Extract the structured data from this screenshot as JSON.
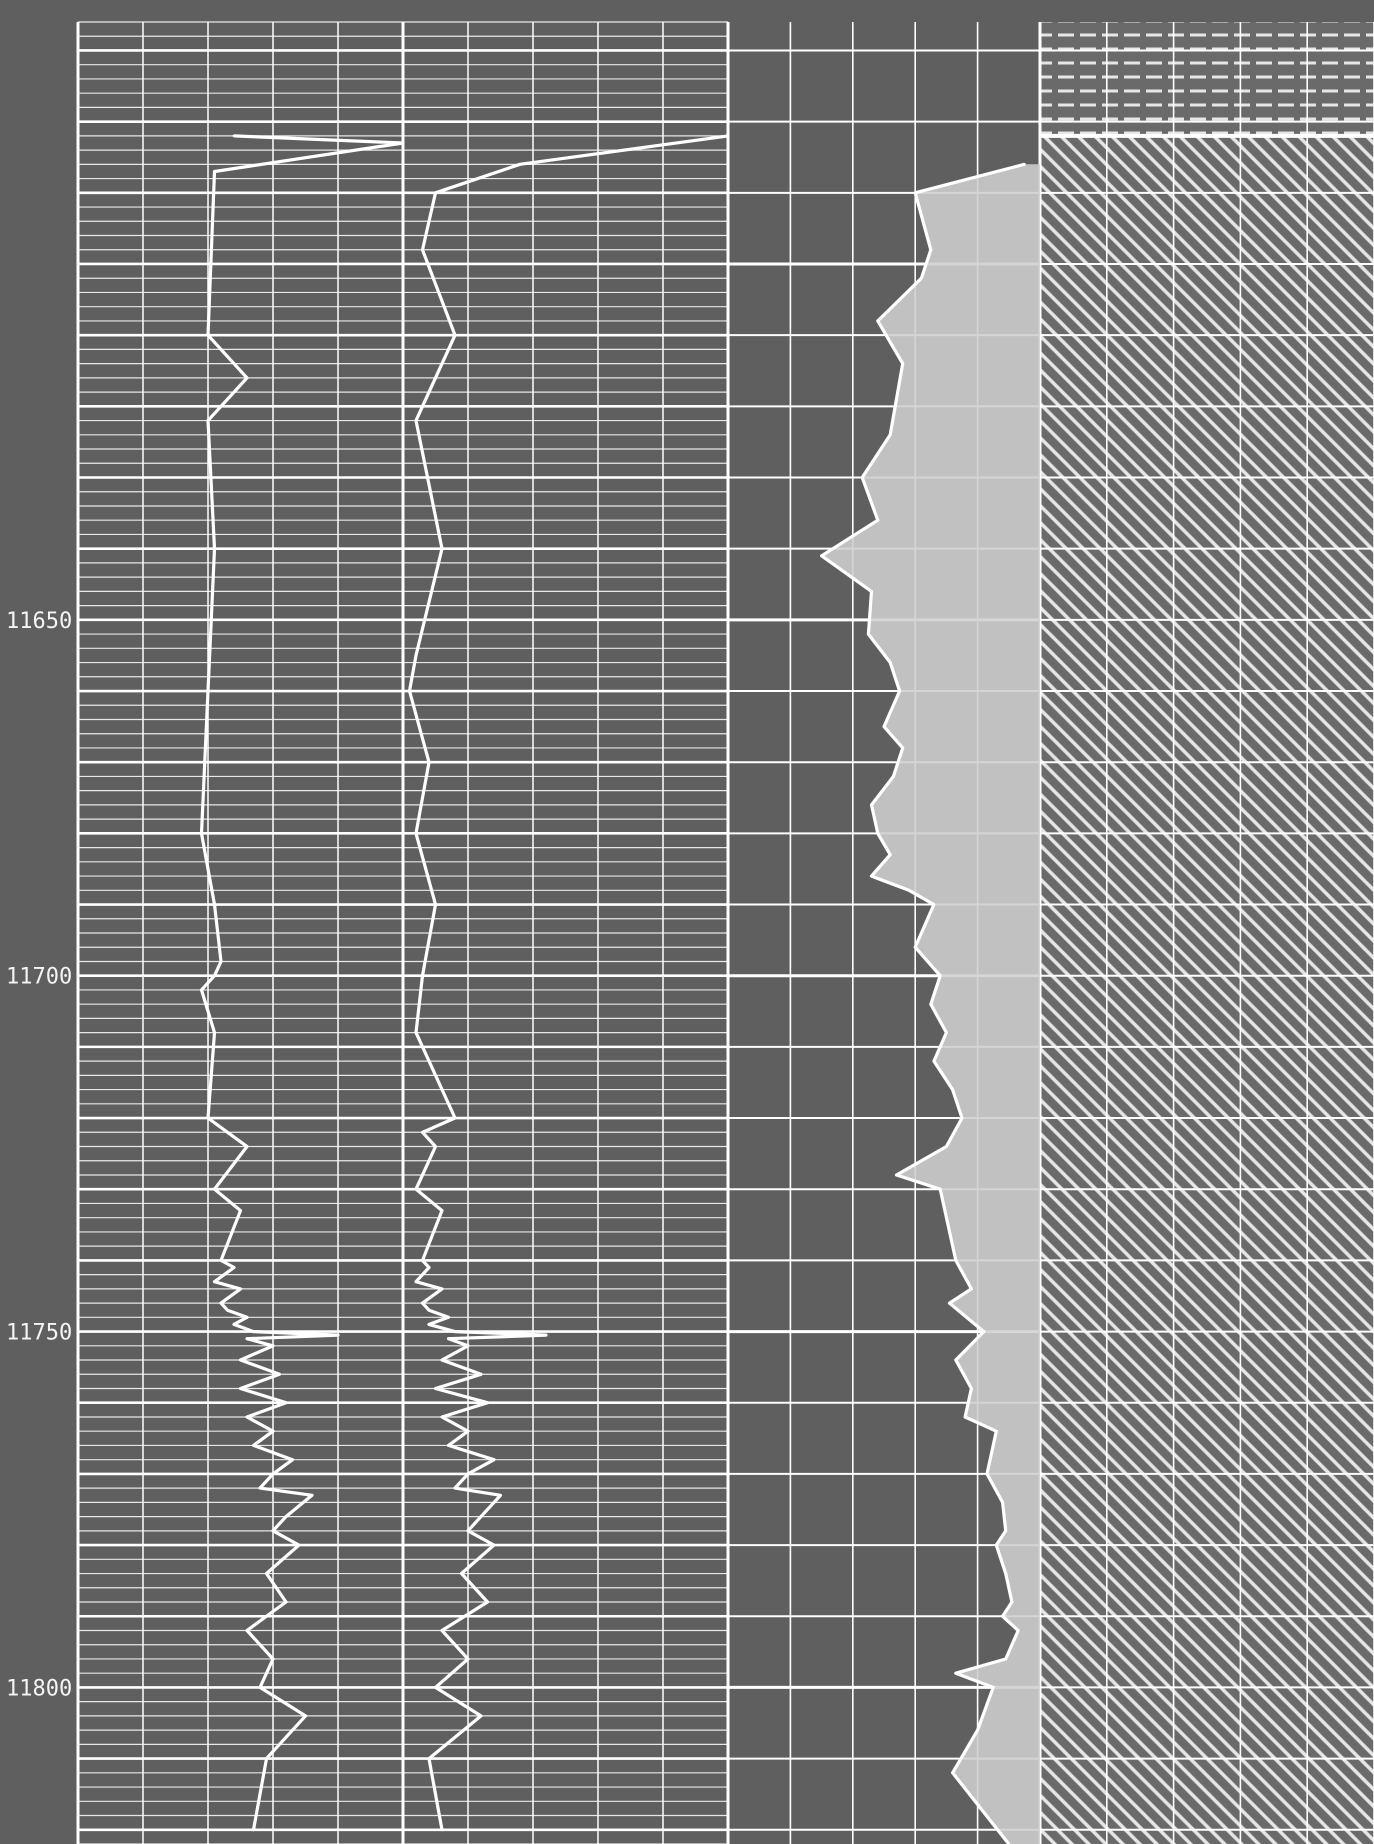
{
  "colors": {
    "background": "#5f5f5f",
    "grid": "#ffffff",
    "curve": "#ffffff",
    "shading": "#cfcfcf",
    "hatch": "#e6e6e6"
  },
  "chart_data": {
    "type": "line",
    "depth_axis": {
      "range": [
        11566,
        11822
      ],
      "tick_labels": [
        "11650",
        "11700",
        "11750",
        "11800"
      ],
      "tick_values": [
        11650,
        11700,
        11750,
        11800
      ]
    },
    "tracks": [
      {
        "name": "track-1",
        "scale": "linear",
        "grid": true,
        "fine_depth_grid": true
      },
      {
        "name": "track-2",
        "scale": "linear",
        "grid": true,
        "fine_depth_grid": false
      },
      {
        "name": "track-3",
        "scale": "linear",
        "grid": true,
        "fill": "hatched"
      }
    ],
    "series": [
      {
        "track": 1,
        "x": [
          2.4,
          5.0,
          2.1,
          2.0,
          2.6,
          2.0,
          2.1,
          2.0,
          1.9,
          2.1,
          2.2,
          2.1,
          1.9,
          2.1,
          2.0,
          2.3,
          2.6,
          2.1,
          2.5,
          2.2,
          2.4,
          2.1,
          2.5,
          2.2,
          2.3,
          2.6,
          2.4,
          2.7,
          4.0,
          2.6,
          3.0,
          2.5,
          3.1,
          2.5,
          3.2,
          2.6,
          3.0,
          2.7,
          3.3,
          3.0,
          2.8,
          3.6,
          3.2,
          3.0,
          3.4,
          2.9,
          3.2,
          2.6,
          3.0,
          2.8,
          3.5,
          2.9,
          2.7
        ],
        "y": [
          11582,
          11583,
          11587,
          11610,
          11616,
          11622,
          11640,
          11660,
          11680,
          11690,
          11698,
          11700,
          11702,
          11708,
          11720,
          11722,
          11724,
          11730,
          11733,
          11740,
          11741,
          11743,
          11744,
          11746,
          11747,
          11748,
          11749,
          11750,
          11750.5,
          11751,
          11752,
          11754,
          11756,
          11758,
          11760,
          11762,
          11764,
          11766,
          11768,
          11770,
          11772,
          11773,
          11776,
          11778,
          11780,
          11784,
          11788,
          11792,
          11796,
          11800,
          11804,
          11810,
          11820
        ]
      },
      {
        "track": 1,
        "x": [
          10.0,
          6.8,
          5.5,
          5.3,
          5.8,
          5.2,
          5.6,
          5.2,
          5.1,
          5.4,
          5.2,
          5.5,
          5.3,
          5.2,
          5.8,
          5.3,
          5.5,
          5.2,
          5.6,
          5.3,
          5.4,
          5.2,
          5.6,
          5.3,
          5.4,
          5.7,
          5.4,
          5.8,
          7.2,
          5.7,
          6.0,
          5.6,
          6.2,
          5.5,
          6.3,
          5.6,
          6.0,
          5.7,
          6.4,
          6.0,
          5.8,
          6.5,
          6.2,
          6.0,
          6.4,
          5.9,
          6.3,
          5.6,
          6.0,
          5.5,
          6.2,
          5.4,
          5.6
        ],
        "y": [
          11582,
          11586,
          11590,
          11598,
          11610,
          11622,
          11640,
          11655,
          11660,
          11670,
          11680,
          11690,
          11700,
          11708,
          11720,
          11722,
          11724,
          11730,
          11733,
          11740,
          11741,
          11743,
          11744,
          11746,
          11747,
          11748,
          11749,
          11750,
          11750.5,
          11751,
          11752,
          11754,
          11756,
          11758,
          11760,
          11762,
          11764,
          11766,
          11768,
          11770,
          11772,
          11773,
          11776,
          11778,
          11780,
          11784,
          11788,
          11792,
          11796,
          11800,
          11804,
          11810,
          11820
        ]
      },
      {
        "track": 2,
        "x": [
          9.5,
          6.0,
          6.5,
          6.2,
          4.8,
          5.6,
          5.2,
          4.3,
          4.8,
          3.0,
          4.6,
          4.5,
          5.2,
          5.5,
          5.0,
          5.6,
          5.3,
          4.6,
          4.8,
          5.2,
          4.6,
          5.8,
          6.6,
          6.0,
          6.8,
          6.5,
          7.0,
          6.6,
          7.2,
          7.5,
          7.0,
          5.4,
          6.8,
          7.3,
          7.8,
          7.1,
          8.2,
          7.3,
          7.8,
          7.6,
          8.6,
          8.3,
          8.8,
          8.9,
          8.6,
          8.9,
          9.1,
          8.8,
          9.3,
          8.9,
          7.3,
          8.5,
          8.0,
          7.2,
          9.0
        ],
        "y": [
          11586,
          11590,
          11598,
          11602,
          11608,
          11614,
          11624,
          11630,
          11636,
          11641,
          11646,
          11652,
          11656,
          11660,
          11665,
          11668,
          11672,
          11676,
          11680,
          11683,
          11686,
          11688,
          11690,
          11696,
          11700,
          11704,
          11708,
          11712,
          11716,
          11720,
          11724,
          11728,
          11730,
          11740,
          11744,
          11746,
          11750,
          11754,
          11758,
          11762,
          11764,
          11770,
          11774,
          11778,
          11780,
          11784,
          11788,
          11790,
          11792,
          11796,
          11798,
          11800,
          11806,
          11812,
          11822
        ]
      }
    ]
  }
}
